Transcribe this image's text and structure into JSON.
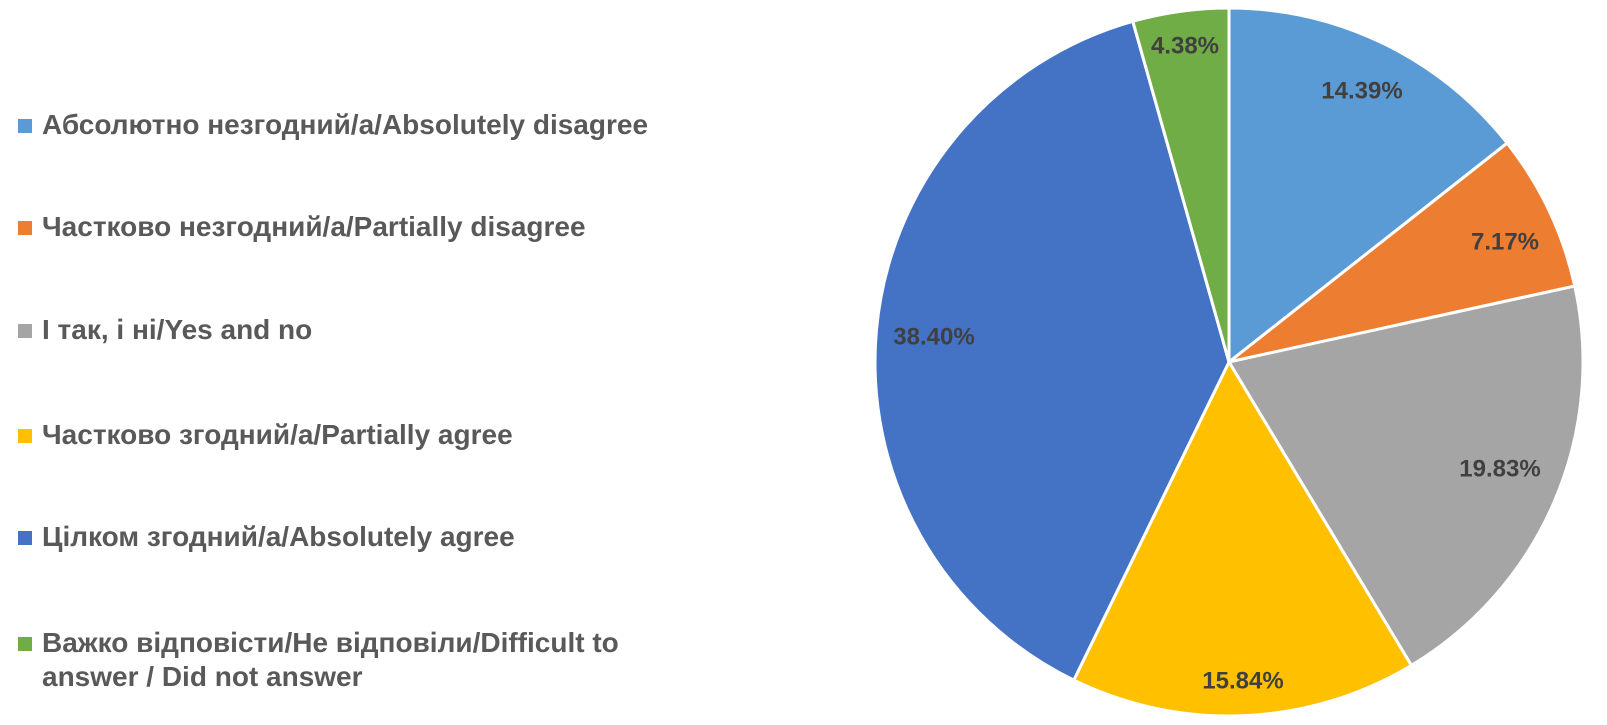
{
  "chart_data": {
    "type": "pie",
    "title": "",
    "start_angle_deg": 0,
    "direction": "clockwise",
    "legend_position": "left",
    "data_labels": true,
    "slices": [
      {
        "label": "Абсолютно незгодний/а/Absolutely disagree",
        "value": 14.39,
        "display": "14.39%",
        "color": "#5B9BD5"
      },
      {
        "label": "Частково незгодний/а/Partially disagree",
        "value": 7.17,
        "display": "7.17%",
        "color": "#ED7D31"
      },
      {
        "label": "І так, і ні/Yes and no",
        "value": 19.83,
        "display": "19.83%",
        "color": "#A5A5A5"
      },
      {
        "label": "Частково згодний/а/Partially agree",
        "value": 15.84,
        "display": "15.84%",
        "color": "#FFC000"
      },
      {
        "label": "Цілком згодний/а/Absolutely agree",
        "value": 38.4,
        "display": "38.40%",
        "color": "#4472C4"
      },
      {
        "label": "Важко відповісти/Не відповіли/Difficult to answer / Did not answer",
        "value": 4.38,
        "display": "4.38%",
        "color": "#70AD47"
      }
    ]
  }
}
